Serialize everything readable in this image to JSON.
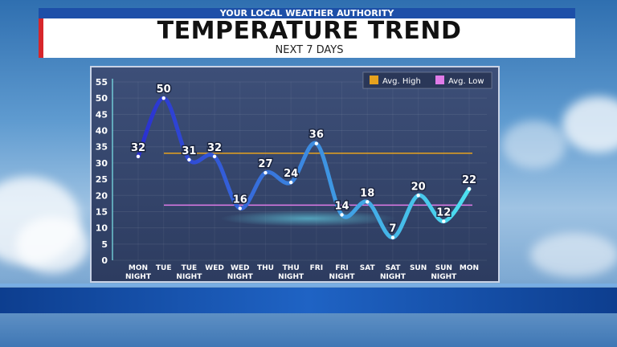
{
  "header": {
    "station": "YOUR LOCAL WEATHER AUTHORITY",
    "title": "TEMPERATURE TREND",
    "subtitle": "NEXT 7 DAYS"
  },
  "colors": {
    "avg_high": "#e6a21e",
    "avg_low": "#e07be8",
    "line_start": "#2a2fd0",
    "line_end": "#4de1f0",
    "banner": "#1d4fa8",
    "accent_red": "#d7262b"
  },
  "chart_data": {
    "type": "line",
    "categories": [
      [
        "MON",
        "NIGHT"
      ],
      [
        "TUE"
      ],
      [
        "TUE",
        "NIGHT"
      ],
      [
        "WED"
      ],
      [
        "WED",
        "NIGHT"
      ],
      [
        "THU"
      ],
      [
        "THU",
        "NIGHT"
      ],
      [
        "FRI"
      ],
      [
        "FRI",
        "NIGHT"
      ],
      [
        "SAT"
      ],
      [
        "SAT",
        "NIGHT"
      ],
      [
        "SUN"
      ],
      [
        "SUN",
        "NIGHT"
      ],
      [
        "MON"
      ]
    ],
    "values": [
      32,
      50,
      31,
      32,
      16,
      27,
      24,
      36,
      14,
      18,
      7,
      20,
      12,
      22
    ],
    "ylim": [
      0,
      55
    ],
    "yticks": [
      0,
      5,
      10,
      15,
      20,
      25,
      30,
      35,
      40,
      45,
      50,
      55
    ],
    "reference_lines": [
      {
        "name": "Avg. High",
        "value": 33
      },
      {
        "name": "Avg. Low",
        "value": 17
      }
    ],
    "legend_position": "top-right",
    "data_labels": true,
    "grid": true
  }
}
